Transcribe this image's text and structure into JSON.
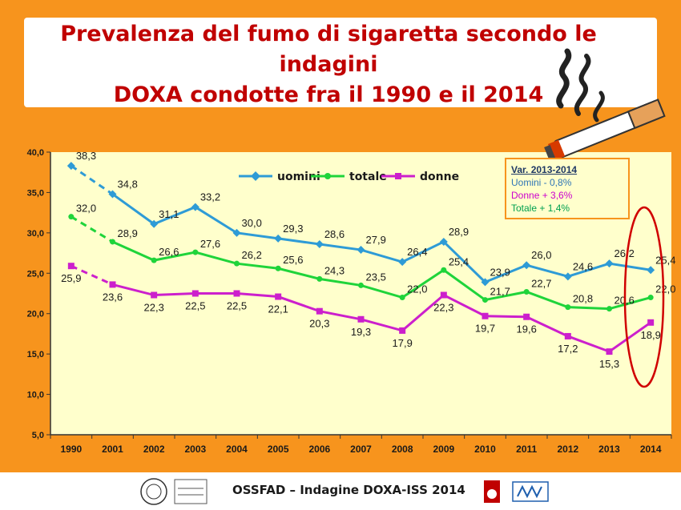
{
  "title_lines": [
    "Prevalenza del fumo di sigaretta secondo le indagini",
    "DOXA condotte fra il 1990 e il 2014"
  ],
  "variation_box": {
    "heading": "Var. 2013-2014",
    "uomini": "Uomini  - 0,8%",
    "donne": "Donne  + 3,6%",
    "totale": "Totale   + 1,4%"
  },
  "footer": {
    "text": "OSSFAD – Indagine DOXA-ISS 2014"
  },
  "colors": {
    "uomini": "#2e9bd6",
    "totale": "#1fd43a",
    "donne": "#cc1fcc",
    "highlight": "#d00000",
    "frame": "#f7941d",
    "plot_bg": "#ffffcc"
  },
  "chart_data": {
    "type": "line",
    "categories": [
      "1990",
      "2001",
      "2002",
      "2003",
      "2004",
      "2005",
      "2006",
      "2007",
      "2008",
      "2009",
      "2010",
      "2011",
      "2012",
      "2013",
      "2014"
    ],
    "ylim": [
      5,
      40
    ],
    "yticks": [
      "5,0",
      "10,0",
      "15,0",
      "20,0",
      "25,0",
      "30,0",
      "35,0",
      "40,0"
    ],
    "ytick_values": [
      5,
      10,
      15,
      20,
      25,
      30,
      35,
      40
    ],
    "grid": false,
    "legend_position": "top",
    "series": [
      {
        "name": "uomini",
        "values": [
          38.3,
          34.8,
          31.1,
          33.2,
          30.0,
          29.3,
          28.6,
          27.9,
          26.4,
          28.9,
          23.9,
          26.0,
          24.6,
          26.2,
          25.4
        ],
        "labels": [
          "38,3",
          "34,8",
          "31,1",
          "33,2",
          "30,0",
          "29,3",
          "28,6",
          "27,9",
          "26,4",
          "28,9",
          "23,9",
          "26,0",
          "24,6",
          "26,2",
          "25,4"
        ]
      },
      {
        "name": "totale",
        "values": [
          32.0,
          28.9,
          26.6,
          27.6,
          26.2,
          25.6,
          24.3,
          23.5,
          22.0,
          25.4,
          21.7,
          22.7,
          20.8,
          20.6,
          22.0
        ],
        "labels": [
          "32,0",
          "28,9",
          "26,6",
          "27,6",
          "26,2",
          "25,6",
          "24,3",
          "23,5",
          "22,0",
          "25,4",
          "21,7",
          "22,7",
          "20,8",
          "20,6",
          "22,0"
        ]
      },
      {
        "name": "donne",
        "values": [
          25.9,
          23.6,
          22.3,
          22.5,
          22.5,
          22.1,
          20.3,
          19.3,
          17.9,
          22.3,
          19.7,
          19.6,
          17.2,
          15.3,
          18.9
        ],
        "labels": [
          "25,9",
          "23,6",
          "22,3",
          "22,5",
          "22,5",
          "22,1",
          "20,3",
          "19,3",
          "17,9",
          "22,3",
          "19,7",
          "19,6",
          "17,2",
          "15,3",
          "18,9"
        ]
      }
    ]
  }
}
